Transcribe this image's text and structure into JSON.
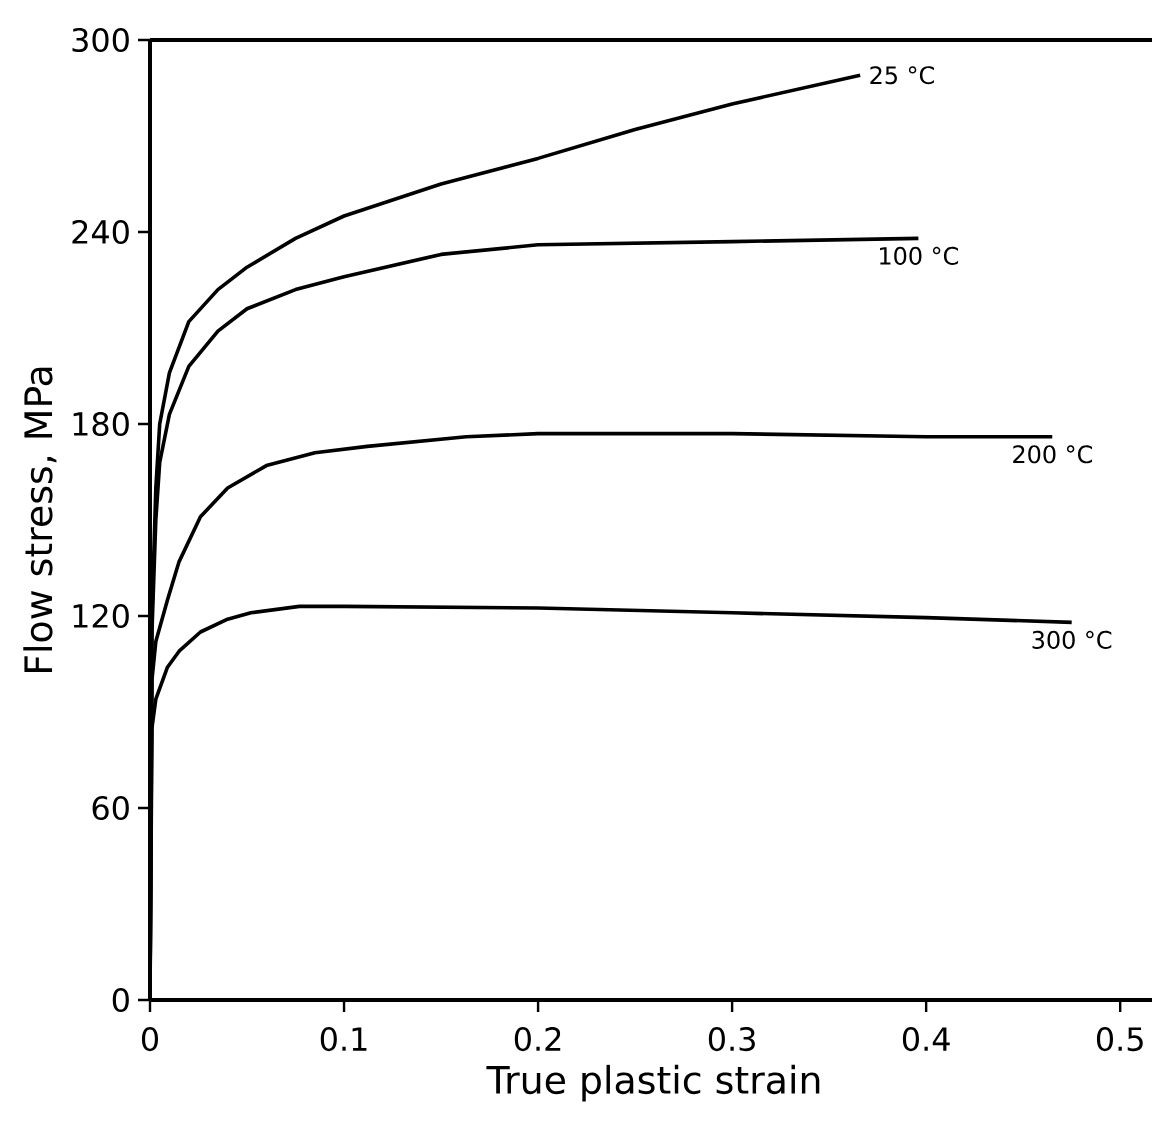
{
  "chart_data": {
    "type": "line",
    "xlabel": "True plastic strain",
    "ylabel": "Flow stress, MPa",
    "xlim": [
      0,
      0.52
    ],
    "ylim": [
      0,
      300
    ],
    "xticks": [
      0,
      0.1,
      0.2,
      0.3,
      0.4,
      0.5
    ],
    "yticks": [
      0,
      60,
      120,
      180,
      240,
      300
    ],
    "series": [
      {
        "name": "25 °C",
        "color": "#000000",
        "x": [
          0,
          0.001,
          0.003,
          0.005,
          0.01,
          0.02,
          0.035,
          0.05,
          0.075,
          0.1,
          0.15,
          0.2,
          0.25,
          0.3,
          0.366
        ],
        "values": [
          0,
          120,
          160,
          180,
          196,
          212,
          222,
          229,
          238,
          245,
          255,
          263,
          272,
          280,
          289
        ]
      },
      {
        "name": "100 °C",
        "color": "#000000",
        "x": [
          0,
          0.001,
          0.003,
          0.005,
          0.01,
          0.02,
          0.035,
          0.05,
          0.075,
          0.1,
          0.15,
          0.2,
          0.3,
          0.396
        ],
        "values": [
          0,
          115,
          150,
          168,
          183,
          198,
          209,
          216,
          222,
          226,
          233,
          236,
          237,
          238
        ]
      },
      {
        "name": "200 °C",
        "color": "#000000",
        "x": [
          0,
          0.001,
          0.003,
          0.009,
          0.015,
          0.026,
          0.04,
          0.06,
          0.085,
          0.112,
          0.163,
          0.2,
          0.3,
          0.4,
          0.465
        ],
        "values": [
          0,
          100,
          112,
          125,
          137,
          151,
          160,
          167,
          171,
          173,
          176,
          177,
          177,
          176,
          176
        ]
      },
      {
        "name": "300 °C",
        "color": "#000000",
        "x": [
          0,
          0.001,
          0.003,
          0.009,
          0.015,
          0.026,
          0.04,
          0.052,
          0.077,
          0.1,
          0.2,
          0.3,
          0.4,
          0.475
        ],
        "values": [
          0,
          85,
          94,
          104,
          109,
          115,
          119,
          121,
          123,
          123,
          122.5,
          121,
          119.5,
          118
        ]
      }
    ]
  }
}
